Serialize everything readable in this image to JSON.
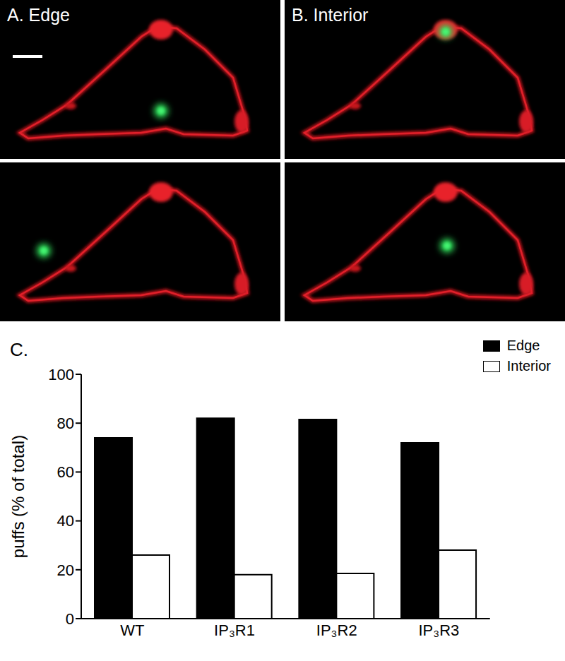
{
  "image_panels": [
    "A. Edge",
    "B. Interior"
  ],
  "chart_data": {
    "type": "bar",
    "annotations": [
      "C."
    ],
    "y_label": "puffs (% of total)",
    "categories": [
      "WT",
      "IP₃R1",
      "IP₃R2",
      "IP₃R3"
    ],
    "series": [
      {
        "name": "Edge",
        "color": "#000000",
        "values": [
          74,
          82,
          81.5,
          72
        ]
      },
      {
        "name": "Interior",
        "color": "#ffffff",
        "values": [
          26,
          18,
          18.5,
          28
        ]
      }
    ],
    "ylim": [
      0,
      100
    ],
    "yticks": [
      0,
      20,
      40,
      60,
      80,
      100
    ],
    "grid": false,
    "legend": "upper right"
  }
}
